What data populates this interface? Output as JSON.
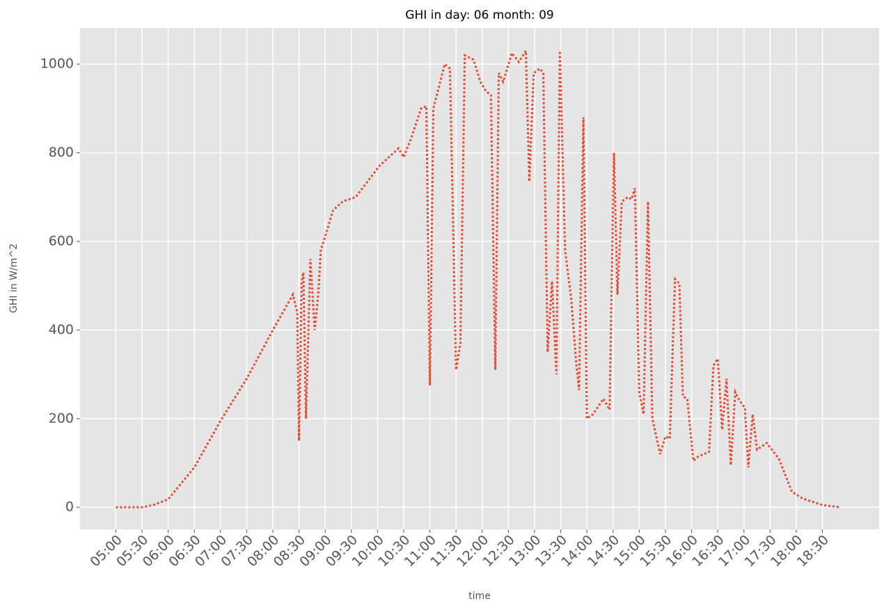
{
  "chart_data": {
    "type": "line",
    "title": "GHI in day: 06 month: 09",
    "x_label": "time",
    "y_label": "GHI in W/m^2",
    "x": [
      "05:00",
      "05:30",
      "05:43",
      "06:00",
      "06:30",
      "07:00",
      "07:30",
      "08:00",
      "08:23",
      "08:28",
      "08:30",
      "08:33",
      "08:35",
      "08:38",
      "08:43",
      "08:48",
      "08:52",
      "08:55",
      "08:59",
      "09:09",
      "09:20",
      "09:35",
      "10:02",
      "10:24",
      "10:30",
      "10:38",
      "10:50",
      "10:56",
      "11:00",
      "11:04",
      "11:17",
      "11:23",
      "11:30",
      "11:35",
      "11:40",
      "11:50",
      "11:58",
      "12:04",
      "12:10",
      "12:15",
      "12:19",
      "12:24",
      "12:34",
      "12:42",
      "12:50",
      "12:54",
      "12:59",
      "13:06",
      "13:10",
      "13:15",
      "13:20",
      "13:25",
      "13:29",
      "13:35",
      "13:42",
      "13:48",
      "13:51",
      "13:56",
      "14:00",
      "14:07",
      "14:19",
      "14:26",
      "14:31",
      "14:35",
      "14:40",
      "14:47",
      "14:51",
      "14:55",
      "15:00",
      "15:05",
      "15:10",
      "15:15",
      "15:24",
      "15:30",
      "15:35",
      "15:41",
      "15:46",
      "15:50",
      "15:55",
      "16:02",
      "16:08",
      "16:20",
      "16:25",
      "16:30",
      "16:35",
      "16:40",
      "16:45",
      "16:50",
      "16:55",
      "17:01",
      "17:05",
      "17:10",
      "17:15",
      "17:26",
      "17:40",
      "17:55",
      "18:07",
      "18:30",
      "18:51"
    ],
    "series": [
      {
        "name": "GHI",
        "color": "#e24a33",
        "values": [
          0,
          0,
          5,
          18,
          90,
          195,
          290,
          400,
          480,
          440,
          150,
          510,
          530,
          200,
          560,
          400,
          480,
          580,
          605,
          670,
          690,
          700,
          770,
          810,
          790,
          830,
          900,
          905,
          275,
          900,
          1000,
          990,
          310,
          370,
          1020,
          1010,
          960,
          940,
          930,
          310,
          980,
          960,
          1025,
          1005,
          1030,
          735,
          980,
          990,
          980,
          350,
          510,
          300,
          1030,
          580,
          470,
          320,
          265,
          880,
          200,
          210,
          245,
          220,
          800,
          480,
          690,
          700,
          695,
          720,
          260,
          210,
          690,
          200,
          120,
          160,
          155,
          515,
          505,
          250,
          245,
          105,
          115,
          125,
          320,
          335,
          175,
          290,
          95,
          260,
          240,
          225,
          90,
          210,
          130,
          145,
          110,
          35,
          20,
          5,
          0
        ]
      }
    ],
    "xlim": [
      "04:19",
      "19:35"
    ],
    "xticks": [
      "05:00",
      "05:30",
      "06:00",
      "06:30",
      "07:00",
      "07:30",
      "08:00",
      "08:30",
      "09:00",
      "09:30",
      "10:00",
      "10:30",
      "11:00",
      "11:30",
      "12:00",
      "12:30",
      "13:00",
      "13:30",
      "14:00",
      "14:30",
      "15:00",
      "15:30",
      "16:00",
      "16:30",
      "17:00",
      "17:30",
      "18:00",
      "18:30"
    ],
    "ylim": [
      -50,
      1082
    ],
    "yticks": [
      0,
      200,
      400,
      600,
      800,
      1000
    ],
    "grid": true
  }
}
